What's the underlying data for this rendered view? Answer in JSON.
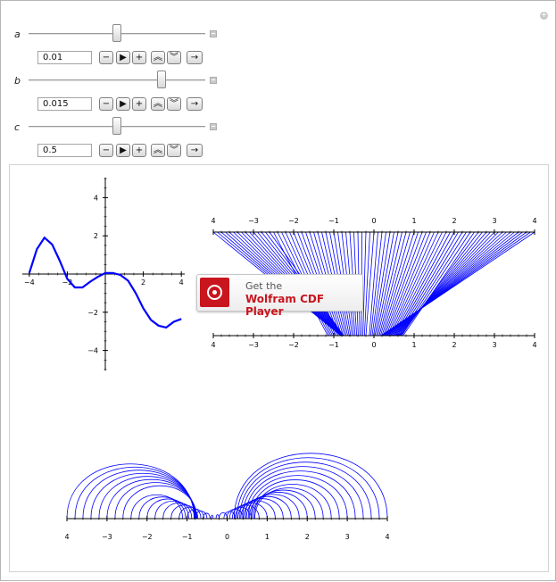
{
  "controls": [
    {
      "label": "a",
      "value": "0.01",
      "fraction": 0.5
    },
    {
      "label": "b",
      "value": "0.015",
      "fraction": 0.75
    },
    {
      "label": "c",
      "value": "0.5",
      "fraction": 0.5
    }
  ],
  "buttons": {
    "decrement": "−",
    "play": "▶",
    "increment": "+",
    "faster": "︽",
    "slower": "︾",
    "direction": "→"
  },
  "cdf_banner": {
    "line1": "Get the",
    "line2": "Wolfram CDF Player"
  },
  "chart_data": [
    {
      "type": "line",
      "x_ticks": [
        "−4",
        "−2",
        "2",
        "4"
      ],
      "y_ticks": [
        "4",
        "2",
        "−2",
        "−4"
      ],
      "xlim": [
        -4,
        4
      ],
      "ylim": [
        -5,
        5
      ],
      "series": [
        {
          "x": [
            -4,
            -3.6,
            -3.2,
            -2.8,
            -2.4,
            -2.0,
            -1.6,
            -1.2,
            -0.8,
            -0.4,
            0.0,
            0.4,
            0.8,
            1.2,
            1.6,
            2.0,
            2.4,
            2.8,
            3.2,
            3.6,
            4.0
          ],
          "y": [
            0.05,
            1.3,
            1.9,
            1.55,
            0.7,
            -0.25,
            -0.7,
            -0.7,
            -0.4,
            -0.15,
            0.05,
            0.05,
            -0.05,
            -0.35,
            -1.0,
            -1.8,
            -2.4,
            -2.7,
            -2.8,
            -2.5,
            -2.35
          ]
        }
      ],
      "color": "#0000ff"
    },
    {
      "type": "other",
      "x_ticks": [
        "4",
        "−3",
        "−2",
        "−1",
        "0",
        "1",
        "2",
        "3",
        "4"
      ],
      "top_ticks": [
        "4",
        "−3",
        "−2",
        "−1",
        "0",
        "1",
        "2",
        "3",
        "4"
      ],
      "bottom_ticks": [
        "4",
        "−3",
        "−2",
        "−1",
        "0",
        "1",
        "2",
        "3",
        "4"
      ],
      "xlim": [
        -4,
        4
      ],
      "color": "#0000ff"
    },
    {
      "type": "other",
      "x_ticks": [
        "4",
        "−3",
        "−2",
        "−1",
        "0",
        "1",
        "2",
        "3",
        "4"
      ],
      "xlim": [
        -4,
        4
      ],
      "color": "#0000ff"
    }
  ]
}
